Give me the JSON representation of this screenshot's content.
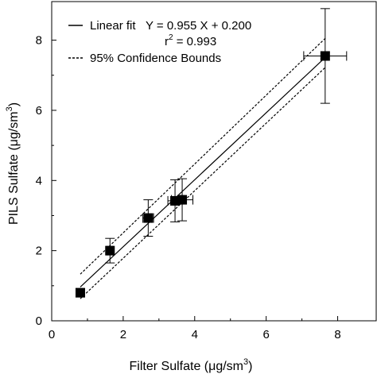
{
  "chart_data": {
    "type": "scatter",
    "title": "",
    "xlabel": "Filter Sulfate (μg/sm",
    "xlabel_sup": "3",
    "xlabel_close": ")",
    "ylabel": "PILS Sulfate (μg/sm",
    "ylabel_sup": "3",
    "ylabel_close": ")",
    "xlim": [
      0,
      9.1
    ],
    "ylim": [
      0,
      9.1
    ],
    "x_ticks": [
      0,
      2,
      4,
      6,
      8
    ],
    "y_ticks": [
      0,
      2,
      4,
      6,
      8
    ],
    "grid": false,
    "legend_position": "top-left",
    "points": [
      {
        "x": 0.8,
        "y": 0.8,
        "xerr": 0.0,
        "yerr": 0.12
      },
      {
        "x": 1.63,
        "y": 2.0,
        "xerr": 0.08,
        "yerr": 0.35
      },
      {
        "x": 2.7,
        "y": 2.93,
        "xerr": 0.15,
        "yerr": 0.52
      },
      {
        "x": 3.45,
        "y": 3.42,
        "xerr": 0.2,
        "yerr": 0.6
      },
      {
        "x": 3.65,
        "y": 3.45,
        "xerr": 0.3,
        "yerr": 0.6
      },
      {
        "x": 7.65,
        "y": 7.55,
        "xerr": 0.6,
        "yerr": 1.35
      }
    ],
    "fit": {
      "slope": 0.955,
      "intercept": 0.2,
      "x_range": [
        0.8,
        7.65
      ],
      "conf_lower": [
        0.63,
        7.22
      ],
      "conf_upper": [
        1.33,
        8.05
      ]
    },
    "legend": {
      "fit_label": "Linear fit",
      "equation": "Y = 0.955 X + 0.200",
      "r2_prefix": "r",
      "r2_sup": "2",
      "r2_value": " = 0.993",
      "conf_label": "95% Confidence Bounds"
    }
  }
}
